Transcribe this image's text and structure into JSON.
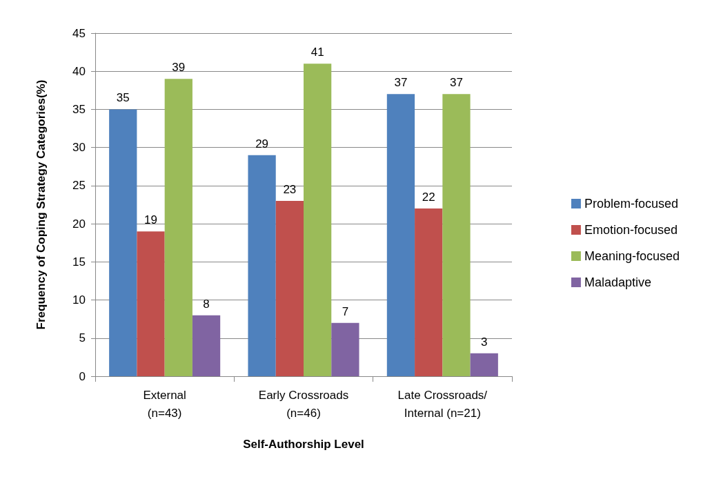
{
  "chart_data": {
    "type": "bar",
    "xlabel": "Self-Authorship Level",
    "ylabel": "Frequency of Coping Strategy Categories(%)",
    "categories": [
      "External\n(n=43)",
      "Early Crossroads\n(n=46)",
      "Late Crossroads/\nInternal (n=21)"
    ],
    "series": [
      {
        "name": "Problem-focused",
        "color": "#4f81bd",
        "values": [
          35,
          29,
          37
        ]
      },
      {
        "name": "Emotion-focused",
        "color": "#c0504d",
        "values": [
          19,
          23,
          22
        ]
      },
      {
        "name": "Meaning-focused",
        "color": "#9bbb59",
        "values": [
          39,
          41,
          37
        ]
      },
      {
        "name": "Maladaptive",
        "color": "#8064a2",
        "values": [
          8,
          7,
          3
        ]
      }
    ],
    "ylim": [
      0,
      45
    ],
    "yticks": [
      0,
      5,
      10,
      15,
      20,
      25,
      30,
      35,
      40,
      45
    ],
    "grid": "y",
    "legend": "right",
    "data_labels": true
  }
}
